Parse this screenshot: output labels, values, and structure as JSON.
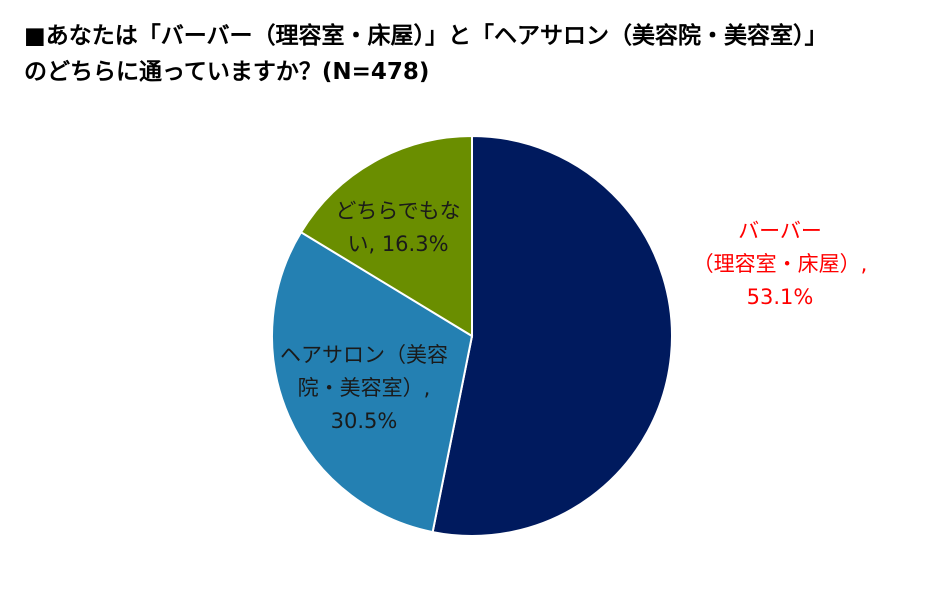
{
  "chart_data": {
    "type": "pie",
    "title_lines": [
      "■あなたは「バーバー（理容室・床屋）」と「ヘアサロン（美容院・美容室）」",
      "のどちらに通っていますか？(N=478)"
    ],
    "slices": [
      {
        "category": "バーバー（理容室・床屋）",
        "value": 53.1,
        "label_lines": [
          "バーバー",
          "（理容室・床屋）,",
          "53.1%"
        ],
        "color": "#001a5e",
        "label_color": "#ff0000"
      },
      {
        "category": "ヘアサロン（美容院・美容室）",
        "value": 30.5,
        "label_lines": [
          "ヘアサロン（美容",
          "院・美容室）,",
          "30.5%"
        ],
        "color": "#2480b2",
        "label_color": "#1a1a1a"
      },
      {
        "category": "どちらでもない",
        "value": 16.3,
        "label_lines": [
          "どちらでもな",
          "い, 16.3%"
        ],
        "color": "#6a8e00",
        "label_color": "#1a1a1a"
      }
    ],
    "start": "12 o'clock",
    "direction": "clockwise",
    "slice_border_color": "#ffffff"
  }
}
